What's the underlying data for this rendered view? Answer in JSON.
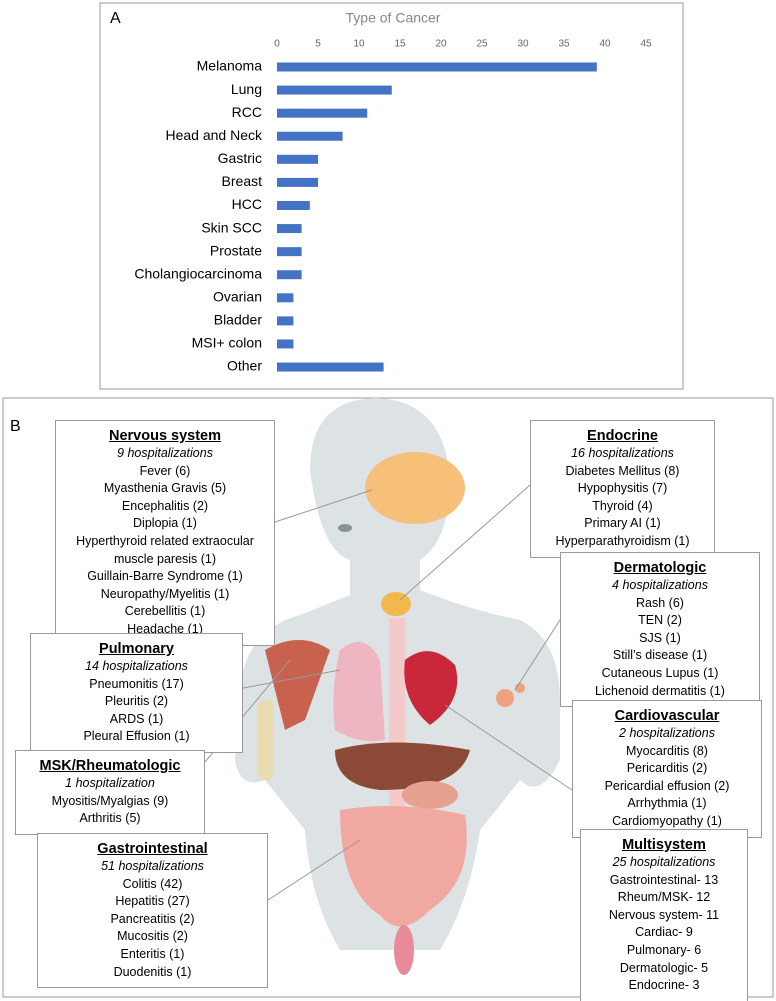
{
  "chart_data": {
    "type": "bar",
    "orientation": "horizontal",
    "panel_label": "A",
    "title": "Type of Cancer",
    "categories": [
      "Melanoma",
      "Lung",
      "RCC",
      "Head and Neck",
      "Gastric",
      "Breast",
      "HCC",
      "Skin SCC",
      "Prostate",
      "Cholangiocarcinoma",
      "Ovarian",
      "Bladder",
      "MSI+ colon",
      "Other"
    ],
    "values": [
      39,
      14,
      11,
      8,
      5,
      5,
      4,
      3,
      3,
      3,
      2,
      2,
      2,
      13
    ],
    "color": "#4472c4",
    "xlim": [
      0,
      45
    ],
    "xticks": [
      0,
      5,
      10,
      15,
      20,
      25,
      30,
      35,
      40,
      45
    ],
    "grid": false
  },
  "panel_b": {
    "label": "B",
    "systems": [
      {
        "name": "Nervous system",
        "hospitalizations": "9 hospitalizations",
        "items": [
          "Fever (6)",
          "Myasthenia Gravis (5)",
          "Encephalitis (2)",
          "Diplopia (1)",
          "Hyperthyroid related extraocular muscle paresis (1)",
          "Guillain-Barre Syndrome (1)",
          "Neuropathy/Myelitis (1)",
          "Cerebellitis (1)",
          "Headache (1)"
        ]
      },
      {
        "name": "Endocrine",
        "hospitalizations": "16 hospitalizations",
        "items": [
          "Diabetes Mellitus (8)",
          "Hypophysitis (7)",
          "Thyroid (4)",
          "Primary AI (1)",
          "Hyperparathyroidism (1)"
        ]
      },
      {
        "name": "Dermatologic",
        "hospitalizations": "4 hospitalizations",
        "items": [
          "Rash (6)",
          "TEN (2)",
          "SJS (1)",
          "Still’s disease (1)",
          "Cutaneous Lupus (1)",
          "Lichenoid dermatitis (1)"
        ]
      },
      {
        "name": "Pulmonary",
        "hospitalizations": "14 hospitalizations",
        "items": [
          "Pneumonitis (17)",
          "Pleuritis (2)",
          "ARDS (1)",
          "Pleural Effusion (1)"
        ]
      },
      {
        "name": "Cardiovascular",
        "hospitalizations": "2 hospitalizations",
        "items": [
          "Myocarditis (8)",
          "Pericarditis (2)",
          "Pericardial effusion (2)",
          "Arrhythmia (1)",
          "Cardiomyopathy (1)"
        ]
      },
      {
        "name": "MSK/Rheumatologic",
        "hospitalizations": "1 hospitalization",
        "items": [
          "Myositis/Myalgias (9)",
          "Arthritis (5)"
        ]
      },
      {
        "name": "Gastrointestinal",
        "hospitalizations": "51 hospitalizations",
        "items": [
          "Colitis (42)",
          "Hepatitis (27)",
          "Pancreatitis (2)",
          "Mucositis (2)",
          "Enteritis (1)",
          "Duodenitis (1)"
        ]
      },
      {
        "name": "Multisystem",
        "hospitalizations": "25 hospitalizations",
        "items": [
          "Gastrointestinal- 13",
          "Rheum/MSK- 12",
          "Nervous system- 11",
          "Cardiac- 9",
          "Pulmonary- 6",
          "Dermatologic- 5",
          "Endocrine- 3"
        ]
      }
    ]
  }
}
